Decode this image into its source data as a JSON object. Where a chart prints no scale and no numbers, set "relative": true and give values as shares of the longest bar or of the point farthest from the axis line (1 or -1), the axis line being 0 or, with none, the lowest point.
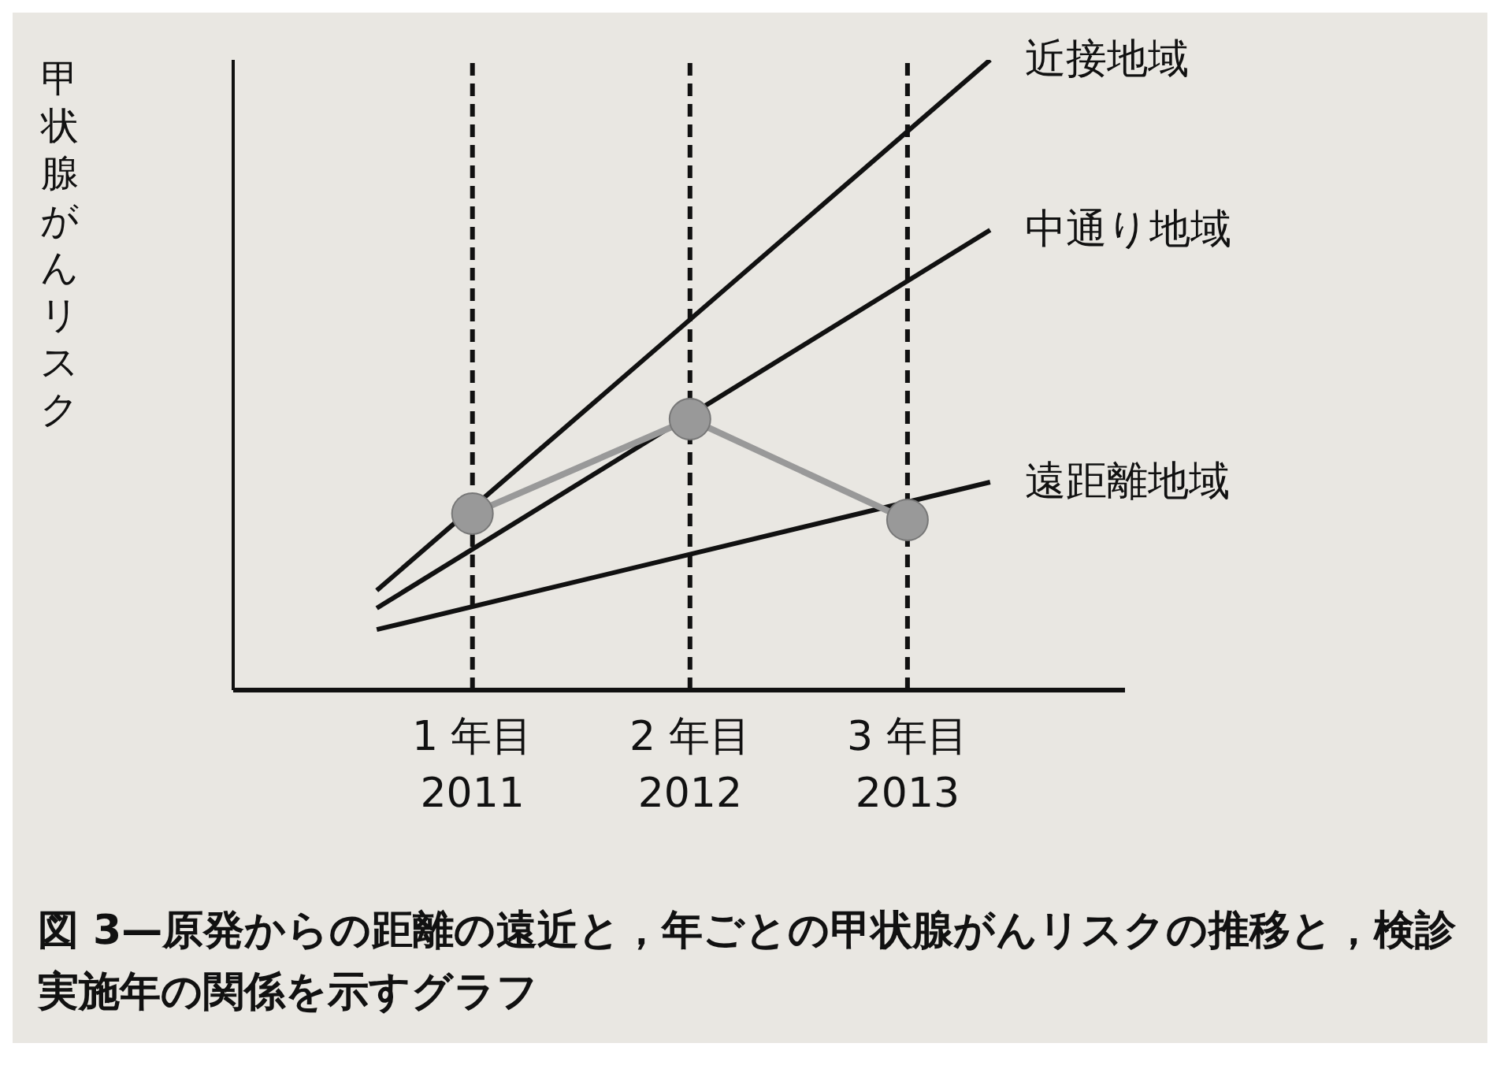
{
  "chart_data": {
    "type": "line",
    "relative": true,
    "ylabel": "甲状腺がんリスク",
    "xlim": [
      2009.9,
      2014
    ],
    "xticks": [
      2011,
      2012,
      2013
    ],
    "series": [
      {
        "name": "近接地域",
        "color": "#111111",
        "x": [
          2010.56,
          2013.38
        ],
        "values": [
          0.158,
          1.0
        ]
      },
      {
        "name": "中通り地域",
        "color": "#111111",
        "x": [
          2010.56,
          2013.38
        ],
        "values": [
          0.13,
          0.73
        ]
      },
      {
        "name": "遠距離地域",
        "color": "#111111",
        "x": [
          2010.56,
          2013.38
        ],
        "values": [
          0.096,
          0.33
        ]
      },
      {
        "color": "#999999",
        "x": [
          2011,
          2012,
          2013
        ],
        "values": [
          0.28,
          0.43,
          0.27
        ],
        "marker": "circle"
      }
    ],
    "ref_lines": [
      {
        "axis": "x",
        "value": 2011,
        "line_style": "dashed",
        "color": "#111111"
      },
      {
        "axis": "x",
        "value": 2012,
        "line_style": "dashed",
        "color": "#111111"
      },
      {
        "axis": "x",
        "value": 2013,
        "line_style": "dashed",
        "color": "#111111"
      }
    ],
    "marker": "none",
    "legend": false,
    "grid": false,
    "annotations": [
      "1 年目",
      "2 年目",
      "3 年目",
      "図 3—原発からの距離の遠近と，年ごとの甲状腺がんリスクの推移と，検診実施年の関係を示すグラフ"
    ]
  }
}
